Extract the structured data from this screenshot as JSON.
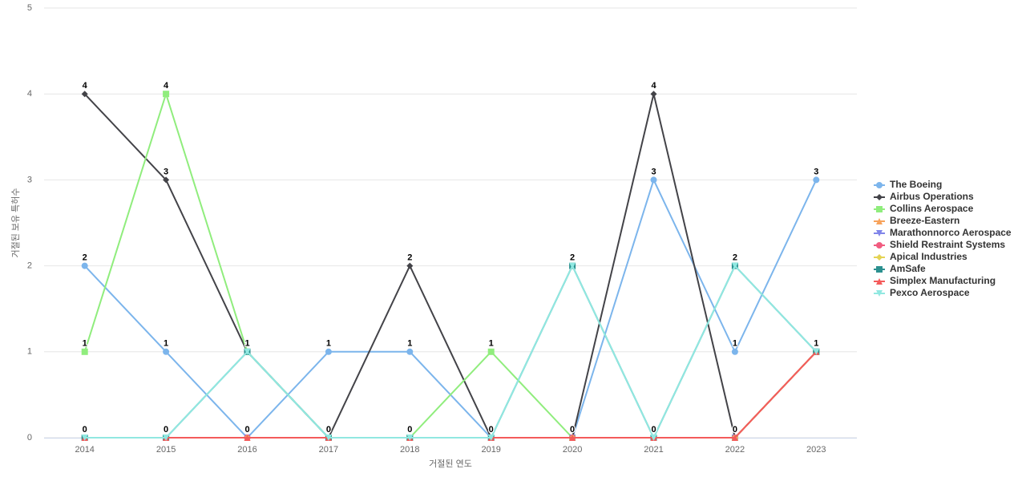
{
  "chart_data": {
    "type": "line",
    "x_label": "거절된 연도",
    "y_label": "거절된 보유 특허수",
    "categories": [
      "2014",
      "2015",
      "2016",
      "2017",
      "2018",
      "2019",
      "2020",
      "2021",
      "2022",
      "2023"
    ],
    "ylim": [
      0,
      5
    ],
    "yticks": [
      0,
      1,
      2,
      3,
      4,
      5
    ],
    "grid": true,
    "legend": "right",
    "series": [
      {
        "name": "The Boeing",
        "color": "#7cb5ec",
        "marker": "circle",
        "values": [
          2,
          1,
          0,
          1,
          1,
          0,
          0,
          3,
          1,
          3
        ]
      },
      {
        "name": "Airbus Operations",
        "color": "#434348",
        "marker": "diamond",
        "values": [
          4,
          3,
          1,
          0,
          2,
          0,
          0,
          4,
          0,
          1
        ]
      },
      {
        "name": "Collins Aerospace",
        "color": "#90ed7d",
        "marker": "square",
        "values": [
          1,
          4,
          1,
          0,
          0,
          1,
          0,
          0,
          0,
          1
        ]
      },
      {
        "name": "Breeze-Eastern",
        "color": "#f7a35c",
        "marker": "triangle",
        "values": [
          0,
          0,
          0,
          0,
          0,
          0,
          0,
          0,
          0,
          1
        ]
      },
      {
        "name": "Marathonnorco Aerospace",
        "color": "#8085e9",
        "marker": "triangle-down",
        "values": [
          0,
          0,
          0,
          0,
          0,
          0,
          0,
          0,
          0,
          1
        ]
      },
      {
        "name": "Shield Restraint Systems",
        "color": "#f15c80",
        "marker": "circle",
        "values": [
          0,
          0,
          0,
          0,
          0,
          0,
          0,
          0,
          0,
          1
        ]
      },
      {
        "name": "Apical Industries",
        "color": "#e4d354",
        "marker": "diamond",
        "values": [
          0,
          0,
          0,
          0,
          0,
          0,
          0,
          0,
          0,
          1
        ]
      },
      {
        "name": "AmSafe",
        "color": "#2b908f",
        "marker": "square",
        "values": [
          0,
          0,
          1,
          0,
          0,
          0,
          2,
          0,
          2,
          1
        ]
      },
      {
        "name": "Simplex Manufacturing",
        "color": "#f45b5b",
        "marker": "triangle",
        "values": [
          0,
          0,
          0,
          0,
          0,
          0,
          0,
          0,
          0,
          1
        ]
      },
      {
        "name": "Pexco Aerospace",
        "color": "#91e8e1",
        "marker": "triangle-down",
        "values": [
          0,
          0,
          1,
          0,
          0,
          0,
          2,
          0,
          2,
          1
        ]
      }
    ]
  }
}
